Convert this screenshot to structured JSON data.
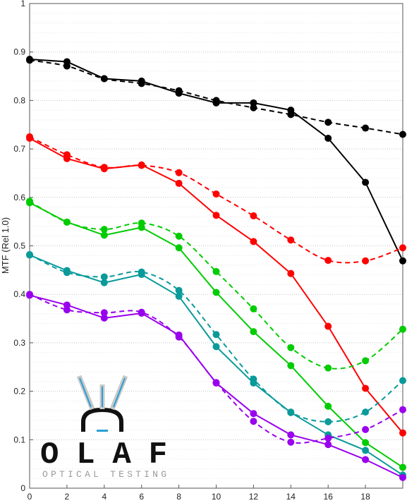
{
  "chart_data": {
    "type": "line",
    "title": "",
    "xlabel": "",
    "ylabel": "MTF (Rel 1.0)",
    "xlim": [
      0,
      20
    ],
    "ylim": [
      0,
      1
    ],
    "x_ticks": [
      0,
      2,
      4,
      6,
      8,
      10,
      12,
      14,
      16,
      18
    ],
    "y_ticks": [
      0,
      0.1,
      0.2,
      0.3,
      0.4,
      0.5,
      0.6,
      0.7,
      0.8,
      0.9,
      1
    ],
    "y_tick_labels": [
      "0",
      "0.1",
      "0.2",
      "0.3",
      "0.4",
      "0.5",
      "0.6",
      "0.7",
      "0.8",
      "0.9",
      "1"
    ],
    "grid": "horizontal dotted major and minor",
    "legend": "none",
    "x": [
      0,
      2,
      4,
      6,
      8,
      10,
      12,
      14,
      16,
      18,
      20
    ],
    "series": [
      {
        "color": "#000000",
        "style": "solid",
        "values": [
          0.885,
          0.88,
          0.845,
          0.84,
          0.815,
          0.795,
          0.795,
          0.78,
          0.722,
          0.631,
          0.469
        ]
      },
      {
        "color": "#000000",
        "style": "dashed",
        "values": [
          0.883,
          0.871,
          0.845,
          0.835,
          0.82,
          0.8,
          0.785,
          0.771,
          0.755,
          0.743,
          0.73
        ]
      },
      {
        "color": "#ff0000",
        "style": "solid",
        "values": [
          0.722,
          0.68,
          0.659,
          0.667,
          0.629,
          0.563,
          0.509,
          0.443,
          0.334,
          0.206,
          0.114
        ]
      },
      {
        "color": "#ff0000",
        "style": "dashed",
        "values": [
          0.725,
          0.688,
          0.662,
          0.666,
          0.651,
          0.607,
          0.562,
          0.512,
          0.47,
          0.469,
          0.496
        ]
      },
      {
        "color": "#00cc00",
        "style": "solid",
        "values": [
          0.589,
          0.549,
          0.522,
          0.538,
          0.496,
          0.404,
          0.323,
          0.253,
          0.169,
          0.094,
          0.043
        ]
      },
      {
        "color": "#00cc00",
        "style": "dashed",
        "values": [
          0.592,
          0.549,
          0.534,
          0.547,
          0.52,
          0.447,
          0.37,
          0.29,
          0.248,
          0.263,
          0.328
        ]
      },
      {
        "color": "#0a9a9a",
        "style": "solid",
        "values": [
          0.481,
          0.449,
          0.424,
          0.441,
          0.396,
          0.292,
          0.217,
          0.156,
          0.11,
          0.078,
          0.027
        ]
      },
      {
        "color": "#0a9a9a",
        "style": "dashed",
        "values": [
          0.482,
          0.445,
          0.436,
          0.446,
          0.408,
          0.317,
          0.225,
          0.157,
          0.137,
          0.157,
          0.222
        ]
      },
      {
        "color": "#9900ee",
        "style": "solid",
        "values": [
          0.398,
          0.378,
          0.351,
          0.361,
          0.316,
          0.217,
          0.154,
          0.11,
          0.09,
          0.059,
          0.022
        ]
      },
      {
        "color": "#9900ee",
        "style": "dashed",
        "values": [
          0.4,
          0.368,
          0.362,
          0.363,
          0.312,
          0.218,
          0.138,
          0.095,
          0.103,
          0.121,
          0.162
        ]
      }
    ]
  },
  "logo": {
    "wordmark": "OLAF",
    "tagline": "OPTICAL TESTING"
  }
}
